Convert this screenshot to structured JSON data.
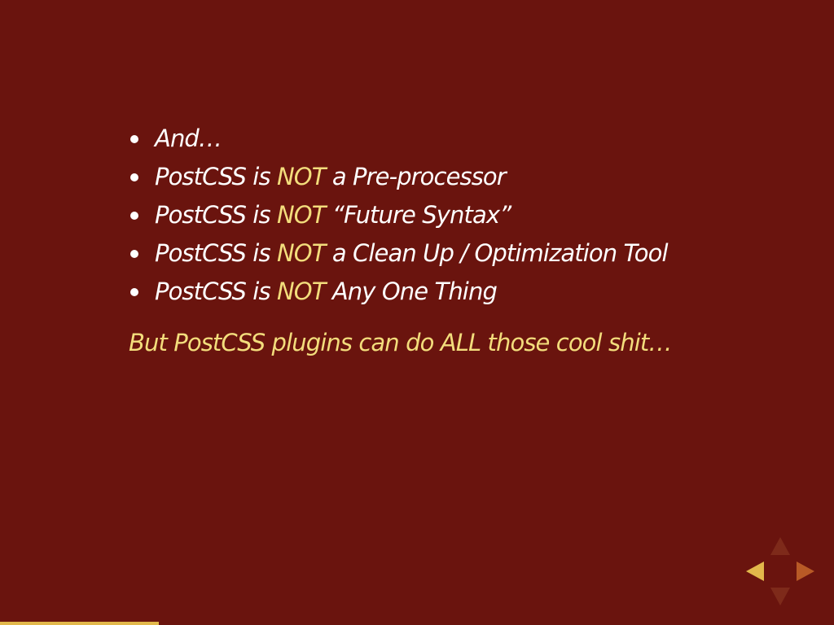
{
  "slide": {
    "bullets": [
      {
        "before": "And…",
        "highlight": "",
        "after": ""
      },
      {
        "before": "PostCSS is ",
        "highlight": "NOT",
        "after": " a Pre-processor"
      },
      {
        "before": "PostCSS is ",
        "highlight": "NOT",
        "after": " “Future Syntax”"
      },
      {
        "before": "PostCSS is ",
        "highlight": "NOT",
        "after": " a Clean Up / Optimization Tool"
      },
      {
        "before": "PostCSS is ",
        "highlight": "NOT",
        "after": " Any One Thing"
      }
    ],
    "closing": "But PostCSS plugins can do ALL those cool shit…"
  },
  "navigation": {
    "up": "chevron-up-icon",
    "down": "chevron-down-icon",
    "left": "chevron-left-icon",
    "right": "chevron-right-icon"
  },
  "progress": {
    "fraction": 0.19
  },
  "colors": {
    "background": "#6a140e",
    "text": "#ffffff",
    "highlight": "#f3dd7c",
    "progress": "#e2b84b",
    "nav_active": "#e2b84b",
    "nav_enabled": "#b85a26",
    "nav_disabled": "#7e2a1a"
  }
}
